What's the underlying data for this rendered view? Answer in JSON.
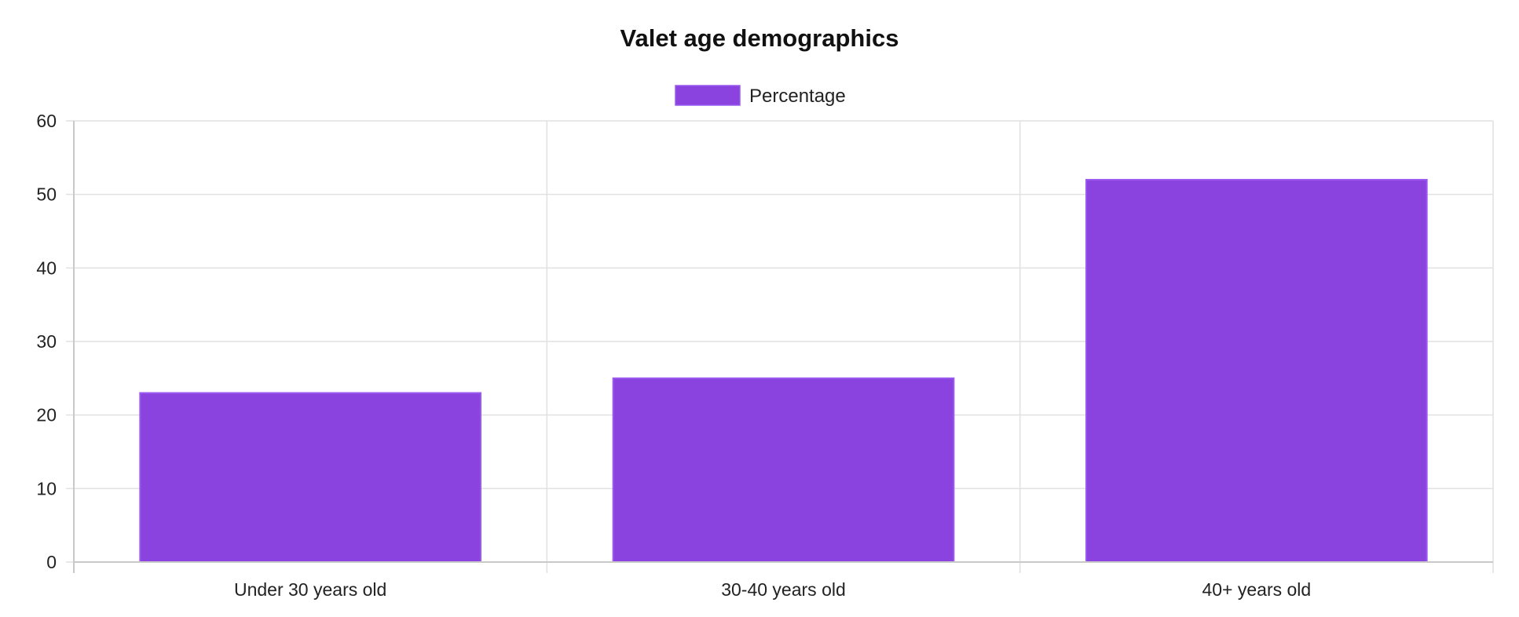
{
  "chart_data": {
    "type": "bar",
    "title": "Valet age demographics",
    "categories": [
      "Under 30 years old",
      "30-40 years old",
      "40+ years old"
    ],
    "series": [
      {
        "name": "Percentage",
        "values": [
          23,
          25,
          52
        ],
        "color": "#8a43de"
      }
    ],
    "ylim": [
      0,
      60
    ],
    "yticks": [
      0,
      10,
      20,
      30,
      40,
      50,
      60
    ],
    "xlabel": "",
    "ylabel": "",
    "grid": true,
    "legend_position": "top-center"
  },
  "colors": {
    "bar_fill": "#8a43de",
    "bar_border": "#9b59f0",
    "grid": "#e1e1e1",
    "axis": "#c9c9c9"
  }
}
